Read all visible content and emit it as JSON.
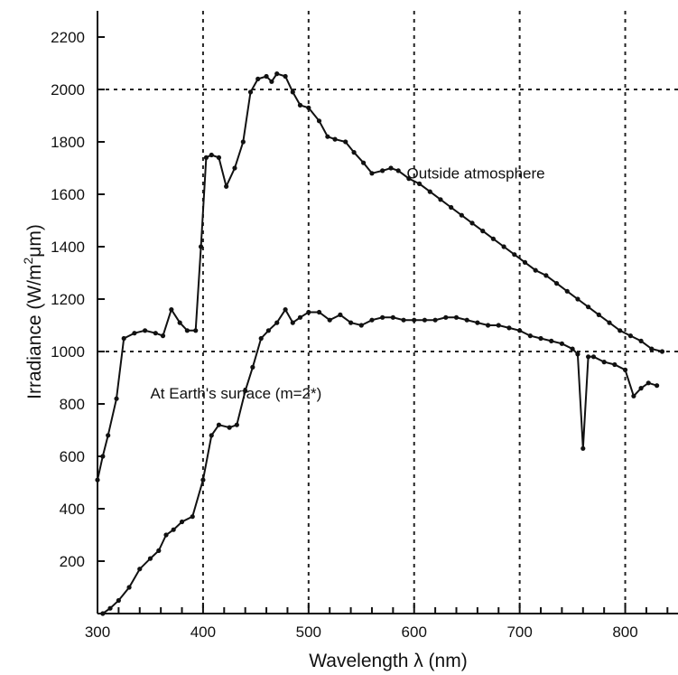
{
  "chart_data": {
    "type": "line",
    "title": "",
    "xlabel": "Wavelength λ (nm)",
    "ylabel_parts": [
      "Irradiance (W/m",
      "2",
      "μm)"
    ],
    "xlim": [
      300,
      850
    ],
    "ylim": [
      0,
      2300
    ],
    "x_ticks": [
      300,
      400,
      500,
      600,
      700,
      800
    ],
    "y_ticks": [
      200,
      400,
      600,
      800,
      1000,
      1200,
      1400,
      1600,
      1800,
      2000,
      2200
    ],
    "grid": {
      "vertical_dotted": [
        400,
        500,
        600,
        700,
        800
      ],
      "horizontal_dotted": [
        1000,
        2000
      ]
    },
    "annotations": [
      {
        "text": "Outside atmosphere",
        "x": 593,
        "y": 1660
      },
      {
        "text": "At Earth's surface (m=2*)",
        "x": 350,
        "y": 820
      }
    ],
    "series": [
      {
        "label_annotation": 0,
        "x": [
          300,
          305,
          310,
          318,
          325,
          335,
          345,
          355,
          362,
          370,
          378,
          385,
          393,
          398,
          403,
          408,
          415,
          422,
          430,
          438,
          445,
          452,
          460,
          465,
          470,
          478,
          485,
          492,
          500,
          510,
          518,
          525,
          535,
          543,
          552,
          560,
          570,
          578,
          585,
          595,
          605,
          615,
          625,
          635,
          645,
          655,
          665,
          675,
          685,
          695,
          705,
          715,
          725,
          735,
          745,
          755,
          765,
          775,
          785,
          795,
          805,
          815,
          825,
          835
        ],
        "y": [
          510,
          600,
          680,
          820,
          1050,
          1070,
          1080,
          1070,
          1060,
          1160,
          1110,
          1080,
          1080,
          1400,
          1740,
          1750,
          1740,
          1630,
          1700,
          1800,
          1990,
          2040,
          2050,
          2030,
          2060,
          2050,
          1990,
          1940,
          1930,
          1880,
          1820,
          1810,
          1800,
          1760,
          1720,
          1680,
          1690,
          1700,
          1690,
          1660,
          1640,
          1610,
          1580,
          1550,
          1520,
          1490,
          1460,
          1430,
          1400,
          1370,
          1340,
          1310,
          1290,
          1260,
          1230,
          1200,
          1170,
          1140,
          1110,
          1080,
          1060,
          1040,
          1010,
          1000
        ]
      },
      {
        "label_annotation": 1,
        "x": [
          305,
          312,
          320,
          330,
          340,
          350,
          358,
          365,
          372,
          380,
          390,
          400,
          408,
          415,
          425,
          432,
          440,
          447,
          455,
          462,
          470,
          478,
          485,
          492,
          500,
          510,
          520,
          530,
          540,
          550,
          560,
          570,
          580,
          590,
          600,
          610,
          620,
          630,
          640,
          650,
          660,
          670,
          680,
          690,
          700,
          710,
          720,
          730,
          740,
          750,
          755,
          760,
          765,
          770,
          780,
          790,
          800,
          808,
          815,
          822,
          830
        ],
        "y": [
          0,
          20,
          50,
          100,
          170,
          210,
          240,
          300,
          320,
          350,
          370,
          510,
          680,
          720,
          710,
          720,
          850,
          940,
          1050,
          1080,
          1110,
          1160,
          1110,
          1130,
          1150,
          1150,
          1120,
          1140,
          1110,
          1100,
          1120,
          1130,
          1130,
          1120,
          1120,
          1120,
          1120,
          1130,
          1130,
          1120,
          1110,
          1100,
          1100,
          1090,
          1080,
          1060,
          1050,
          1040,
          1030,
          1010,
          990,
          630,
          980,
          980,
          960,
          950,
          930,
          830,
          860,
          880,
          870
        ]
      }
    ]
  }
}
